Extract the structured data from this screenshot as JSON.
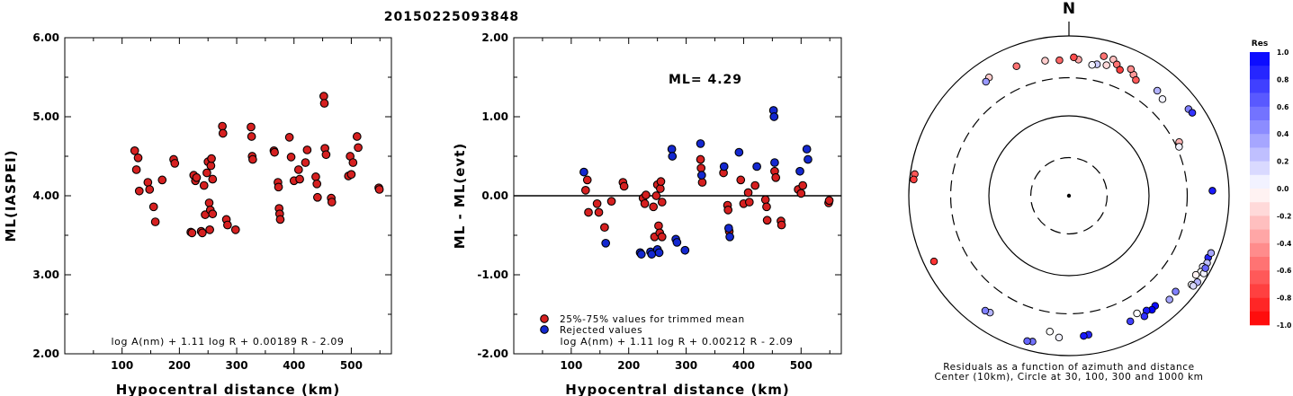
{
  "title": "20150225093848",
  "chart_data": [
    {
      "type": "scatter",
      "xlabel": "Hypocentral distance (km)",
      "ylabel": "ML(IASPEI)",
      "xlim": [
        0,
        570
      ],
      "ylim": [
        2.0,
        6.0
      ],
      "xticks": [
        "100",
        "200",
        "300",
        "400",
        "500"
      ],
      "yticks": [
        "2.00",
        "3.00",
        "4.00",
        "5.00",
        "6.00"
      ],
      "annotation": "log A(nm) + 1.11 log R + 0.00189 R - 2.09",
      "color": "#d62020",
      "points": [
        [
          122,
          4.57
        ],
        [
          125,
          4.33
        ],
        [
          128,
          4.48
        ],
        [
          130,
          4.06
        ],
        [
          145,
          4.17
        ],
        [
          148,
          4.08
        ],
        [
          155,
          3.86
        ],
        [
          158,
          3.67
        ],
        [
          170,
          4.2
        ],
        [
          190,
          4.46
        ],
        [
          192,
          4.41
        ],
        [
          220,
          3.54
        ],
        [
          222,
          3.53
        ],
        [
          225,
          4.26
        ],
        [
          228,
          4.19
        ],
        [
          230,
          4.23
        ],
        [
          238,
          3.55
        ],
        [
          240,
          3.53
        ],
        [
          243,
          4.13
        ],
        [
          245,
          3.76
        ],
        [
          248,
          4.29
        ],
        [
          250,
          4.43
        ],
        [
          252,
          3.91
        ],
        [
          253,
          3.57
        ],
        [
          254,
          3.82
        ],
        [
          255,
          4.38
        ],
        [
          256,
          4.47
        ],
        [
          258,
          4.21
        ],
        [
          258,
          3.77
        ],
        [
          275,
          4.88
        ],
        [
          276,
          4.79
        ],
        [
          282,
          3.7
        ],
        [
          284,
          3.63
        ],
        [
          298,
          3.57
        ],
        [
          325,
          4.87
        ],
        [
          326,
          4.75
        ],
        [
          327,
          4.5
        ],
        [
          328,
          4.46
        ],
        [
          365,
          4.57
        ],
        [
          366,
          4.55
        ],
        [
          372,
          4.17
        ],
        [
          373,
          4.11
        ],
        [
          374,
          3.84
        ],
        [
          375,
          3.77
        ],
        [
          376,
          3.7
        ],
        [
          392,
          4.74
        ],
        [
          395,
          4.49
        ],
        [
          400,
          4.19
        ],
        [
          408,
          4.33
        ],
        [
          410,
          4.21
        ],
        [
          420,
          4.42
        ],
        [
          423,
          4.58
        ],
        [
          438,
          4.24
        ],
        [
          440,
          4.15
        ],
        [
          441,
          3.98
        ],
        [
          452,
          5.26
        ],
        [
          453,
          5.17
        ],
        [
          454,
          4.6
        ],
        [
          456,
          4.52
        ],
        [
          465,
          3.97
        ],
        [
          466,
          3.92
        ],
        [
          495,
          4.25
        ],
        [
          498,
          4.5
        ],
        [
          500,
          4.27
        ],
        [
          503,
          4.42
        ],
        [
          510,
          4.75
        ],
        [
          512,
          4.61
        ],
        [
          548,
          4.1
        ],
        [
          549,
          4.08
        ]
      ]
    },
    {
      "type": "scatter",
      "xlabel": "Hypocentral distance (km)",
      "ylabel": "ML - ML(evt)",
      "xlim": [
        0,
        570
      ],
      "ylim": [
        -2.0,
        2.0
      ],
      "xticks": [
        "100",
        "200",
        "300",
        "400",
        "500"
      ],
      "yticks": [
        "-2.00",
        "-1.00",
        "0.00",
        "1.00",
        "2.00"
      ],
      "annotation_ml": "ML= 4.29",
      "annotation": "log A(nm) + 1.11 log R + 0.00212 R - 2.09",
      "legend": [
        {
          "label": "25%-75% values for trimmed mean",
          "color": "#d62020"
        },
        {
          "label": "Rejected values",
          "color": "#1428d0"
        }
      ],
      "series": [
        {
          "name": "25%-75% values for trimmed mean",
          "color": "#d62020",
          "points": [
            [
              125,
              0.07
            ],
            [
              128,
              0.2
            ],
            [
              130,
              -0.21
            ],
            [
              145,
              -0.1
            ],
            [
              148,
              -0.21
            ],
            [
              158,
              -0.4
            ],
            [
              170,
              -0.07
            ],
            [
              190,
              0.17
            ],
            [
              192,
              0.12
            ],
            [
              225,
              -0.03
            ],
            [
              228,
              -0.1
            ],
            [
              230,
              0.01
            ],
            [
              243,
              -0.14
            ],
            [
              245,
              -0.52
            ],
            [
              248,
              0.0
            ],
            [
              250,
              0.14
            ],
            [
              252,
              -0.38
            ],
            [
              254,
              -0.47
            ],
            [
              255,
              0.09
            ],
            [
              256,
              0.18
            ],
            [
              258,
              -0.08
            ],
            [
              258,
              -0.52
            ],
            [
              325,
              0.46
            ],
            [
              326,
              0.35
            ],
            [
              328,
              0.17
            ],
            [
              365,
              0.29
            ],
            [
              372,
              -0.12
            ],
            [
              373,
              -0.18
            ],
            [
              375,
              -0.45
            ],
            [
              395,
              0.2
            ],
            [
              400,
              -0.1
            ],
            [
              408,
              0.04
            ],
            [
              410,
              -0.08
            ],
            [
              420,
              0.13
            ],
            [
              438,
              -0.05
            ],
            [
              440,
              -0.14
            ],
            [
              441,
              -0.31
            ],
            [
              454,
              0.31
            ],
            [
              456,
              0.23
            ],
            [
              465,
              -0.32
            ],
            [
              466,
              -0.37
            ],
            [
              495,
              0.08
            ],
            [
              500,
              0.03
            ],
            [
              503,
              0.13
            ],
            [
              548,
              -0.09
            ],
            [
              549,
              -0.06
            ]
          ]
        },
        {
          "name": "Rejected values",
          "color": "#1428d0",
          "points": [
            [
              122,
              0.3
            ],
            [
              160,
              -0.6
            ],
            [
              220,
              -0.72
            ],
            [
              222,
              -0.74
            ],
            [
              238,
              -0.71
            ],
            [
              240,
              -0.74
            ],
            [
              250,
              -0.68
            ],
            [
              253,
              -0.72
            ],
            [
              275,
              0.59
            ],
            [
              276,
              0.5
            ],
            [
              282,
              -0.55
            ],
            [
              284,
              -0.59
            ],
            [
              298,
              -0.69
            ],
            [
              325,
              0.66
            ],
            [
              327,
              0.26
            ],
            [
              366,
              0.37
            ],
            [
              374,
              -0.41
            ],
            [
              376,
              -0.52
            ],
            [
              392,
              0.55
            ],
            [
              423,
              0.37
            ],
            [
              452,
              1.08
            ],
            [
              453,
              1.0
            ],
            [
              454,
              0.42
            ],
            [
              498,
              0.31
            ],
            [
              510,
              0.59
            ],
            [
              512,
              0.46
            ]
          ]
        }
      ]
    },
    {
      "type": "scatter",
      "subtype": "polar",
      "north_label": "N",
      "caption_line1": "Residuals as a function of azimuth and distance",
      "caption_line2": "Center (10km), Circle at 30, 100, 300 and 1000 km",
      "colorbar_title": "Res",
      "colorbar_ticks": [
        "1.0",
        "0.8",
        "0.6",
        "0.4",
        "0.2",
        "0.0",
        "-0.2",
        "-0.4",
        "-0.6",
        "-0.8",
        "-1.0"
      ],
      "colorbar_range": [
        -1.0,
        1.0
      ],
      "stations": [
        {
          "azimuth": 14,
          "distance": 630,
          "residual": -0.55
        },
        {
          "azimuth": 18,
          "distance": 620,
          "residual": -0.25
        },
        {
          "azimuth": 20,
          "distance": 560,
          "residual": -0.55
        },
        {
          "azimuth": 22,
          "distance": 500,
          "residual": -0.75
        },
        {
          "azimuth": 16,
          "distance": 500,
          "residual": -0.15
        },
        {
          "azimuth": 28,
          "distance": 520,
          "residual": -0.4
        },
        {
          "azimuth": 30,
          "distance": 470,
          "residual": -0.65
        },
        {
          "azimuth": 26,
          "distance": 580,
          "residual": -0.45
        },
        {
          "azimuth": 12,
          "distance": 480,
          "residual": 0.2
        },
        {
          "azimuth": 10,
          "distance": 460,
          "residual": 0.05
        },
        {
          "azimuth": 4,
          "distance": 510,
          "residual": -0.35
        },
        {
          "azimuth": 2,
          "distance": 540,
          "residual": -0.7
        },
        {
          "azimuth": 356,
          "distance": 500,
          "residual": -0.6
        },
        {
          "azimuth": 350,
          "distance": 520,
          "residual": -0.2
        },
        {
          "azimuth": 338,
          "distance": 560,
          "residual": -0.55
        },
        {
          "azimuth": 326,
          "distance": 610,
          "residual": -0.2
        },
        {
          "azimuth": 324,
          "distance": 580,
          "residual": 0.4
        },
        {
          "azimuth": 278,
          "distance": 880,
          "residual": -0.65
        },
        {
          "azimuth": 276,
          "distance": 890,
          "residual": -0.75
        },
        {
          "azimuth": 244,
          "distance": 750,
          "residual": -0.8
        },
        {
          "azimuth": 40,
          "distance": 520,
          "residual": 0.3
        },
        {
          "azimuth": 44,
          "distance": 480,
          "residual": 0.05
        },
        {
          "azimuth": 54,
          "distance": 700,
          "residual": 0.5
        },
        {
          "azimuth": 56,
          "distance": 720,
          "residual": 0.8
        },
        {
          "azimuth": 64,
          "distance": 340,
          "residual": -0.3
        },
        {
          "azimuth": 66,
          "distance": 320,
          "residual": 0.05
        },
        {
          "azimuth": 88,
          "distance": 620,
          "residual": 0.9
        },
        {
          "azimuth": 114,
          "distance": 800,
          "residual": 0.85
        },
        {
          "azimuth": 112,
          "distance": 820,
          "residual": 0.35
        },
        {
          "azimuth": 116,
          "distance": 830,
          "residual": 0.25
        },
        {
          "azimuth": 118,
          "distance": 780,
          "residual": 0.1
        },
        {
          "azimuth": 120,
          "distance": 800,
          "residual": 0.0
        },
        {
          "azimuth": 120,
          "distance": 880,
          "residual": 0.05
        },
        {
          "azimuth": 122,
          "distance": 740,
          "residual": -0.05
        },
        {
          "azimuth": 124,
          "distance": 860,
          "residual": 0.3
        },
        {
          "azimuth": 126,
          "distance": 780,
          "residual": 0.0
        },
        {
          "azimuth": 126,
          "distance": 830,
          "residual": 0.15
        },
        {
          "azimuth": 118,
          "distance": 850,
          "residual": 0.6
        },
        {
          "azimuth": 132,
          "distance": 620,
          "residual": 0.5
        },
        {
          "azimuth": 136,
          "distance": 640,
          "residual": 0.35
        },
        {
          "azimuth": 142,
          "distance": 560,
          "residual": 0.95
        },
        {
          "azimuth": 144,
          "distance": 580,
          "residual": 1.0
        },
        {
          "azimuth": 146,
          "distance": 540,
          "residual": 0.9
        },
        {
          "azimuth": 148,
          "distance": 600,
          "residual": 0.8
        },
        {
          "azimuth": 150,
          "distance": 500,
          "residual": 0.0
        },
        {
          "azimuth": 154,
          "distance": 560,
          "residual": 0.75
        },
        {
          "azimuth": 172,
          "distance": 570,
          "residual": 0.85
        },
        {
          "azimuth": 174,
          "distance": 580,
          "residual": 0.9
        },
        {
          "azimuth": 184,
          "distance": 600,
          "residual": 0.05
        },
        {
          "azimuth": 194,
          "distance": 760,
          "residual": 0.55
        },
        {
          "azimuth": 196,
          "distance": 780,
          "residual": 0.6
        },
        {
          "azimuth": 188,
          "distance": 520,
          "residual": 0.0
        },
        {
          "azimuth": 214,
          "distance": 580,
          "residual": 0.3
        },
        {
          "azimuth": 216,
          "distance": 600,
          "residual": 0.5
        }
      ]
    }
  ]
}
